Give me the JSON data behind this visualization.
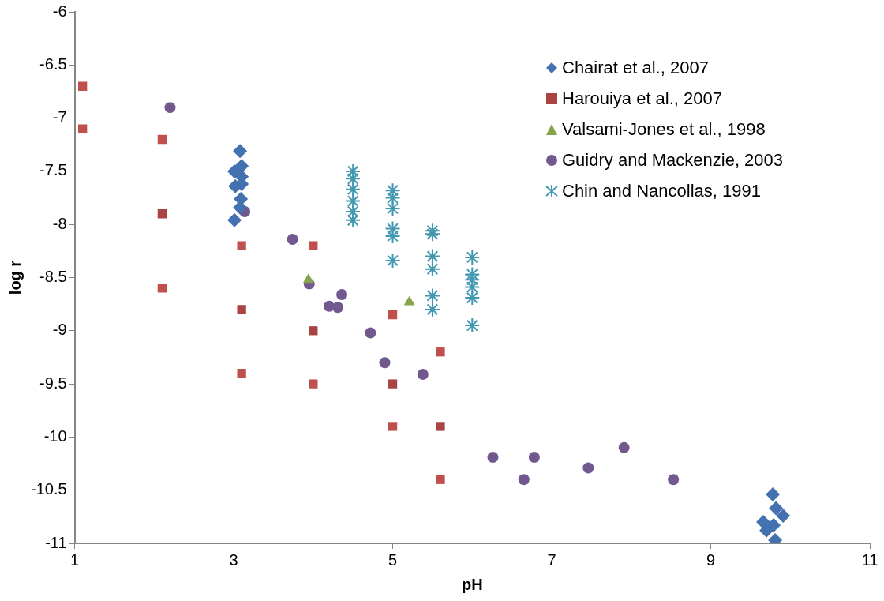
{
  "chart_data": {
    "type": "scatter",
    "xlabel": "pH",
    "ylabel": "log r",
    "xlim": [
      1,
      11
    ],
    "xticks": [
      1,
      3,
      5,
      7,
      9,
      11
    ],
    "ylim": [
      -11,
      -6
    ],
    "yticks": [
      -11,
      -10.5,
      -10,
      -9.5,
      -9,
      -8.5,
      -8,
      -7.5,
      -7,
      -6.5,
      -6
    ],
    "grid": false,
    "legend": "top right",
    "series": [
      {
        "name": "Chairat et al., 2007",
        "color": "#4472b0",
        "marker": "diamond",
        "x": [
          3.08,
          3.01,
          3.1,
          3.1,
          3.02,
          3.1,
          3.09,
          3.08,
          3.01,
          9.78,
          9.82,
          9.91,
          9.66,
          9.79,
          9.7,
          9.81
        ],
        "values": [
          -7.31,
          -7.5,
          -7.45,
          -7.55,
          -7.64,
          -7.62,
          -7.76,
          -7.84,
          -7.96,
          -10.54,
          -10.67,
          -10.74,
          -10.8,
          -10.83,
          -10.88,
          -10.97
        ]
      },
      {
        "name": "Harouiya et al., 2007",
        "color": "#a94442",
        "marker": "square",
        "x": [
          1.1,
          1.1,
          2.1,
          2.1,
          2.1,
          3.1,
          3.1,
          3.1,
          4,
          4,
          4,
          5,
          5,
          5,
          5.6,
          5.6,
          5.6
        ],
        "values": [
          -6.7,
          -7.1,
          -7.2,
          -7.9,
          -8.6,
          -8.2,
          -8.8,
          -9.4,
          -8.2,
          -9.0,
          -9.5,
          -8.85,
          -9.5,
          -9.9,
          -9.2,
          -9.9,
          -10.4
        ],
        "colors": [
          "#c0504d",
          "#c0504d",
          "#c0504d",
          "#a94442",
          "#c0504d",
          "#c0504d",
          "#a94442",
          "#c0504d",
          "#c0504d",
          "#a94442",
          "#c0504d",
          "#c0504d",
          "#a94442",
          "#c0504d",
          "#c0504d",
          "#a94442",
          "#c0504d"
        ]
      },
      {
        "name": "Valsami-Jones et al., 1998",
        "color": "#86a44a",
        "marker": "triangle",
        "x": [
          3.94,
          5.21
        ],
        "values": [
          -8.52,
          -8.73
        ]
      },
      {
        "name": "Guidry and Mackenzie, 2003",
        "color": "#71588f",
        "marker": "circle",
        "x": [
          2.2,
          3.14,
          3.74,
          3.95,
          4.36,
          4.2,
          4.31,
          4.72,
          4.9,
          5.38,
          6.26,
          6.65,
          6.78,
          7.46,
          7.91,
          8.53
        ],
        "values": [
          -6.9,
          -7.88,
          -8.14,
          -8.56,
          -8.66,
          -8.77,
          -8.78,
          -9.02,
          -9.3,
          -9.41,
          -10.19,
          -10.4,
          -10.19,
          -10.29,
          -10.1,
          -10.4
        ]
      },
      {
        "name": "Chin and Nancollas, 1991",
        "color": "#4198b0",
        "marker": "cross",
        "x": [
          4.5,
          4.5,
          4.5,
          4.5,
          4.5,
          4.5,
          5,
          5,
          5,
          5,
          5,
          5,
          5.5,
          5.5,
          5.5,
          5.5,
          5.5,
          5.5,
          6,
          6,
          6,
          6,
          6,
          6
        ],
        "values": [
          -7.5,
          -7.57,
          -7.67,
          -7.78,
          -7.88,
          -7.96,
          -7.68,
          -7.75,
          -7.85,
          -8.04,
          -8.11,
          -8.34,
          -8.06,
          -8.09,
          -8.3,
          -8.42,
          -8.67,
          -8.8,
          -8.31,
          -8.47,
          -8.52,
          -8.59,
          -8.69,
          -8.95
        ]
      }
    ]
  }
}
